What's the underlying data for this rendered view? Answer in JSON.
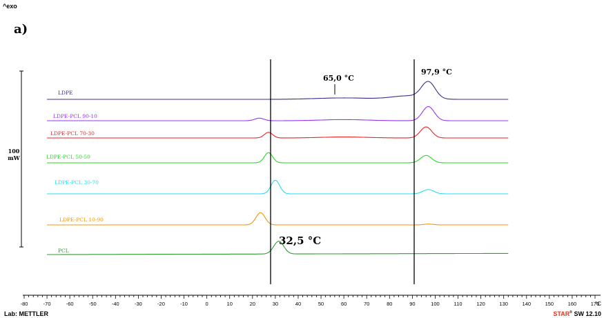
{
  "header": {
    "exo_label": "^exo",
    "panel_label": "a)"
  },
  "footer": {
    "lab": "Lab: METTLER",
    "software_brand": "STAR",
    "software_rest": "SW 12.10"
  },
  "scale_bar": {
    "value": "100",
    "unit": "mW"
  },
  "chart_data": {
    "type": "line",
    "xlabel": "°C",
    "xlim": [
      -80,
      170
    ],
    "x_ticks": [
      -80,
      -70,
      -60,
      -50,
      -40,
      -30,
      -20,
      -10,
      0,
      10,
      20,
      30,
      40,
      50,
      60,
      70,
      80,
      90,
      100,
      110,
      120,
      130,
      140,
      150,
      160,
      170
    ],
    "series": [
      {
        "name": "LDPE",
        "color": "#3d2a8c",
        "x_start": -70,
        "x_end": 132,
        "baseline": 0,
        "baseline_end": 0,
        "peaks": [
          {
            "x": 60,
            "height": 0.5,
            "width": 12
          },
          {
            "x": 88,
            "height": 1.2,
            "width": 7
          },
          {
            "x": 97,
            "height": 5.8,
            "width": 3
          }
        ]
      },
      {
        "name": "LDPE-PCL 90-10",
        "color": "#9933ee",
        "x_start": -70,
        "x_end": 132,
        "baseline": 0,
        "baseline_end": 0,
        "peaks": [
          {
            "x": 23,
            "height": 0.9,
            "width": 2
          },
          {
            "x": 60,
            "height": 0.4,
            "width": 10
          },
          {
            "x": 97,
            "height": 5.0,
            "width": 2.6
          }
        ]
      },
      {
        "name": "LDPE-PCL 70-30",
        "color": "#ee2222",
        "x_start": -70,
        "x_end": 132,
        "baseline": 0,
        "baseline_end": 0,
        "peaks": [
          {
            "x": 27,
            "height": 2.0,
            "width": 1.8
          },
          {
            "x": 60,
            "height": 0.35,
            "width": 10
          },
          {
            "x": 96,
            "height": 3.9,
            "width": 2.5
          }
        ]
      },
      {
        "name": "LDPE-PCL 50-50",
        "color": "#22dd22",
        "x_start": -70,
        "x_end": 132,
        "baseline": 0,
        "baseline_end": 0,
        "peaks": [
          {
            "x": 27,
            "height": 3.6,
            "width": 1.8
          },
          {
            "x": 96,
            "height": 2.6,
            "width": 2.4
          }
        ]
      },
      {
        "name": "LDPE-PCL 30-70",
        "color": "#22ddee",
        "x_start": -70,
        "x_end": 132,
        "baseline": 0,
        "baseline_end": 0,
        "peaks": [
          {
            "x": 30,
            "height": 4.8,
            "width": 1.9
          },
          {
            "x": 97,
            "height": 1.5,
            "width": 2.4
          }
        ]
      },
      {
        "name": "LDPE-PCL 10-90",
        "color": "#f0960a",
        "x_start": -70,
        "x_end": 132,
        "baseline": 0,
        "baseline_end": 0,
        "peaks": [
          {
            "x": 23.5,
            "height": 4.3,
            "width": 2.0
          },
          {
            "x": 97,
            "height": 0.3,
            "width": 2.0
          }
        ]
      },
      {
        "name": "PCL",
        "color": "#2f9a2f",
        "x_start": -70,
        "x_end": 132,
        "baseline": 0,
        "baseline_end": 0.4,
        "peaks": [
          {
            "x": 31.5,
            "height": 4.5,
            "width": 2.2
          }
        ]
      }
    ],
    "annotations": [
      {
        "text": "65,0 °C",
        "x": 60
      },
      {
        "text": "97,9 °C",
        "x": 97.9
      },
      {
        "text": "32,5 °C",
        "x": 32.5
      }
    ],
    "vertical_lines": [
      32.5,
      97
    ]
  }
}
